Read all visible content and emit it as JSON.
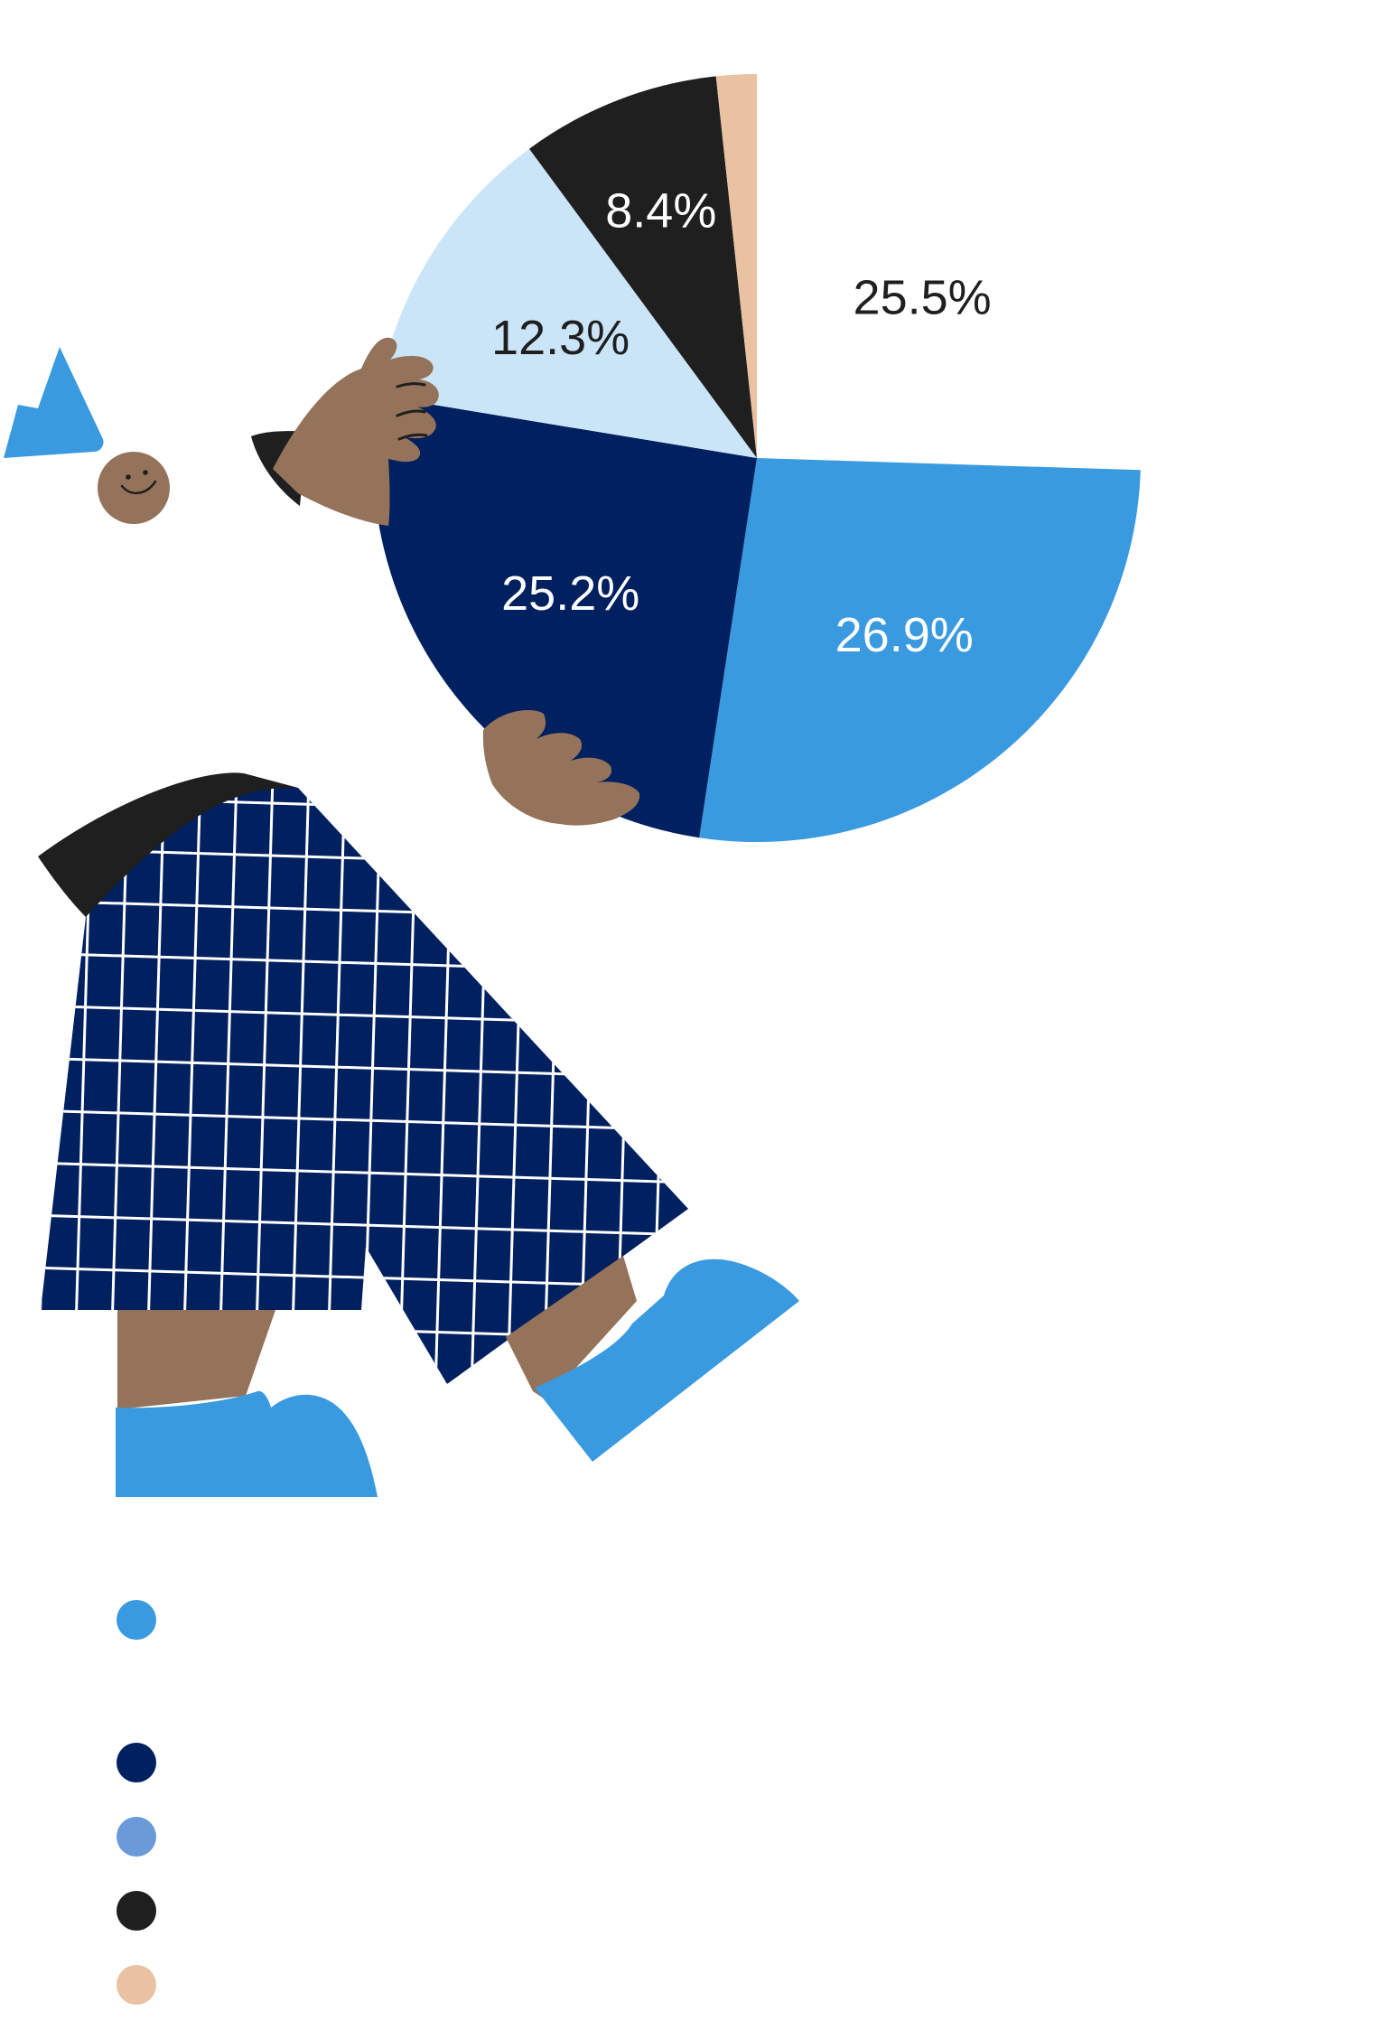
{
  "chart_data": {
    "type": "pie",
    "title": "",
    "slices": [
      {
        "label": "25.5%",
        "value": 25.5,
        "color": "#ffffff",
        "label_color": "#1f1f1f"
      },
      {
        "label": "26.9%",
        "value": 26.9,
        "color": "#3a9ae0",
        "label_color": "#ffffff"
      },
      {
        "label": "25.2%",
        "value": 25.2,
        "color": "#01205f",
        "label_color": "#ffffff"
      },
      {
        "label": "12.3%",
        "value": 12.3,
        "color": "#cbe5f8",
        "label_color": "#1f1f1f"
      },
      {
        "label": "8.4%",
        "value": 8.4,
        "color": "#1f1f1f",
        "label_color": "#ffffff"
      },
      {
        "label": "",
        "value": 1.7,
        "color": "#e9c2a2",
        "label_color": "#1f1f1f"
      }
    ],
    "legend": {
      "placement": "bottom-left",
      "swatches": [
        "#3a9ae0",
        "#01205f",
        "#6a9bd8",
        "#1f1f1f",
        "#e9c2a2"
      ]
    }
  },
  "illustration": {
    "subject": "person-holding-pie-chart",
    "colors": {
      "skin": "#94735a",
      "navy": "#01205f",
      "blue": "#3a9ae0",
      "black": "#1f1f1f",
      "white": "#ffffff"
    }
  }
}
